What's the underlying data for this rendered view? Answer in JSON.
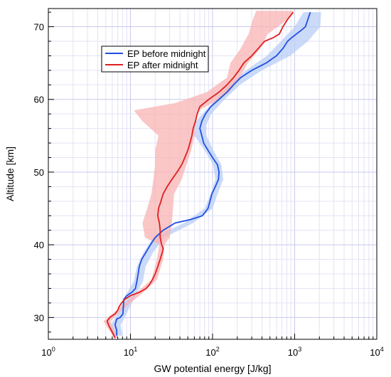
{
  "chart_data": {
    "type": "line",
    "xlabel": "GW potential energy [J/kg]",
    "ylabel": "Altitude [km]",
    "x_scale": "log",
    "xlim": [
      1,
      10000
    ],
    "ylim": [
      27,
      72.5
    ],
    "grid": true,
    "legend_position": "top-left",
    "x_ticks": [
      {
        "base": "10",
        "exp": "0",
        "value": 1
      },
      {
        "base": "10",
        "exp": "1",
        "value": 10
      },
      {
        "base": "10",
        "exp": "2",
        "value": 100
      },
      {
        "base": "10",
        "exp": "3",
        "value": 1000
      },
      {
        "base": "10",
        "exp": "4",
        "value": 10000
      }
    ],
    "y_ticks": [
      "30",
      "40",
      "50",
      "60",
      "70"
    ],
    "series": [
      {
        "name": "EP before midnight",
        "color": "#1f4fe0",
        "band_color": "#b9cdf6",
        "points": [
          [
            6.8,
            27.5
          ],
          [
            6.8,
            28.2
          ],
          [
            6.5,
            29
          ],
          [
            6.8,
            29.8
          ],
          [
            7.5,
            30
          ],
          [
            8.1,
            30.5
          ],
          [
            8.2,
            31.5
          ],
          [
            8.3,
            32.5
          ],
          [
            9,
            33
          ],
          [
            10.5,
            33.5
          ],
          [
            11.5,
            34
          ],
          [
            12,
            35
          ],
          [
            12.4,
            36
          ],
          [
            12.8,
            37
          ],
          [
            13.7,
            38
          ],
          [
            15.5,
            39
          ],
          [
            17.5,
            40
          ],
          [
            20,
            41
          ],
          [
            25,
            42
          ],
          [
            35,
            43
          ],
          [
            55,
            43.5
          ],
          [
            75,
            44
          ],
          [
            88,
            45
          ],
          [
            93,
            46
          ],
          [
            98,
            47
          ],
          [
            108,
            48
          ],
          [
            118,
            49
          ],
          [
            120,
            50
          ],
          [
            115,
            51
          ],
          [
            100,
            52
          ],
          [
            88,
            53
          ],
          [
            78,
            54
          ],
          [
            74,
            55
          ],
          [
            70,
            56
          ],
          [
            74,
            57
          ],
          [
            82,
            58
          ],
          [
            95,
            59
          ],
          [
            120,
            60
          ],
          [
            150,
            61
          ],
          [
            180,
            62
          ],
          [
            220,
            63
          ],
          [
            300,
            64
          ],
          [
            450,
            65
          ],
          [
            600,
            66
          ],
          [
            720,
            67
          ],
          [
            820,
            68
          ],
          [
            920,
            68.5
          ],
          [
            1050,
            69
          ],
          [
            1200,
            69.5
          ],
          [
            1350,
            70
          ],
          [
            1450,
            71
          ],
          [
            1550,
            72
          ]
        ],
        "band": [
          [
            [
              6,
              27.5
            ],
            [
              8,
              27.5
            ]
          ],
          [
            [
              5.8,
              29
            ],
            [
              7.6,
              29
            ]
          ],
          [
            [
              7.4,
              31
            ],
            [
              9.4,
              31
            ]
          ],
          [
            [
              8.7,
              33
            ],
            [
              11.5,
              33
            ]
          ],
          [
            [
              11,
              35
            ],
            [
              14.2,
              35
            ]
          ],
          [
            [
              12,
              37
            ],
            [
              15.3,
              37
            ]
          ],
          [
            [
              14.5,
              39
            ],
            [
              19,
              39
            ]
          ],
          [
            [
              19,
              41
            ],
            [
              26,
              41
            ]
          ],
          [
            [
              45,
              43
            ],
            [
              58,
              43
            ]
          ],
          [
            [
              80,
              45
            ],
            [
              100,
              45
            ]
          ],
          [
            [
              95,
              47
            ],
            [
              115,
              47
            ]
          ],
          [
            [
              108,
              49
            ],
            [
              135,
              49
            ]
          ],
          [
            [
              102,
              51
            ],
            [
              128,
              51
            ]
          ],
          [
            [
              80,
              53
            ],
            [
              102,
              53
            ]
          ],
          [
            [
              60,
              55
            ],
            [
              84,
              55
            ]
          ],
          [
            [
              58,
              56.5
            ],
            [
              84,
              56.5
            ]
          ],
          [
            [
              75,
              58
            ],
            [
              96,
              58
            ]
          ],
          [
            [
              110,
              60
            ],
            [
              140,
              60
            ]
          ],
          [
            [
              160,
              62
            ],
            [
              215,
              62
            ]
          ],
          [
            [
              255,
              64
            ],
            [
              400,
              64
            ]
          ],
          [
            [
              460,
              66
            ],
            [
              880,
              66
            ]
          ],
          [
            [
              680,
              68
            ],
            [
              1450,
              68
            ]
          ],
          [
            [
              1000,
              70
            ],
            [
              2050,
              70
            ]
          ],
          [
            [
              1280,
              72
            ],
            [
              2100,
              72
            ]
          ]
        ]
      },
      {
        "name": "EP after midnight",
        "color": "#e01e1e",
        "band_color": "#f8b3b3",
        "points": [
          [
            6.5,
            27.2
          ],
          [
            6,
            28
          ],
          [
            5.5,
            28.8
          ],
          [
            5.2,
            29.5
          ],
          [
            5.6,
            30
          ],
          [
            6.5,
            30.5
          ],
          [
            7,
            31
          ],
          [
            7.3,
            31.5
          ],
          [
            7.8,
            32
          ],
          [
            8.5,
            32.5
          ],
          [
            10,
            33
          ],
          [
            13,
            33.5
          ],
          [
            15.5,
            34
          ],
          [
            17,
            34.5
          ],
          [
            18.5,
            35.2
          ],
          [
            20,
            36
          ],
          [
            21.5,
            37
          ],
          [
            23,
            38
          ],
          [
            24.5,
            39
          ],
          [
            25,
            39.5
          ],
          [
            24,
            40
          ],
          [
            23,
            41
          ],
          [
            23,
            42
          ],
          [
            22.5,
            43
          ],
          [
            21.5,
            44
          ],
          [
            22,
            45
          ],
          [
            23.5,
            46
          ],
          [
            25,
            47
          ],
          [
            28,
            48
          ],
          [
            32,
            49
          ],
          [
            37,
            50
          ],
          [
            42,
            51
          ],
          [
            46,
            52
          ],
          [
            50,
            53
          ],
          [
            53,
            54
          ],
          [
            56,
            55
          ],
          [
            58,
            56
          ],
          [
            62,
            57
          ],
          [
            65,
            58
          ],
          [
            70,
            59
          ],
          [
            90,
            60
          ],
          [
            120,
            61
          ],
          [
            150,
            62
          ],
          [
            180,
            63
          ],
          [
            210,
            64
          ],
          [
            240,
            65
          ],
          [
            300,
            66
          ],
          [
            360,
            67
          ],
          [
            430,
            68
          ],
          [
            550,
            68.5
          ],
          [
            650,
            69
          ],
          [
            720,
            70
          ],
          [
            820,
            71
          ],
          [
            960,
            72
          ]
        ],
        "band": [
          [
            [
              6.3,
              27.2
            ],
            [
              7,
              27.2
            ]
          ],
          [
            [
              4.7,
              29.5
            ],
            [
              5.7,
              29.5
            ]
          ],
          [
            [
              6.8,
              31
            ],
            [
              7.8,
              31
            ]
          ],
          [
            [
              12,
              33.5
            ],
            [
              14.5,
              33.5
            ]
          ],
          [
            [
              18,
              35.2
            ],
            [
              21,
              35.2
            ]
          ],
          [
            [
              21,
              38
            ],
            [
              25,
              38
            ]
          ],
          [
            [
              22.5,
              40
            ],
            [
              26,
              40
            ]
          ],
          [
            [
              15,
              41
            ],
            [
              30,
              41
            ]
          ],
          [
            [
              14,
              43
            ],
            [
              32,
              43
            ]
          ],
          [
            [
              16,
              45
            ],
            [
              33,
              45
            ]
          ],
          [
            [
              18,
              47
            ],
            [
              34,
              47
            ]
          ],
          [
            [
              19,
              49
            ],
            [
              42,
              49
            ]
          ],
          [
            [
              20,
              51
            ],
            [
              48,
              51
            ]
          ],
          [
            [
              20,
              53
            ],
            [
              55,
              53
            ]
          ],
          [
            [
              22,
              55
            ],
            [
              60,
              55
            ]
          ],
          [
            [
              14,
              57
            ],
            [
              62,
              57
            ]
          ],
          [
            [
              11,
              58.5
            ],
            [
              68,
              58.5
            ]
          ],
          [
            [
              35,
              59.5
            ],
            [
              100,
              59.5
            ]
          ],
          [
            [
              85,
              61
            ],
            [
              160,
              61
            ]
          ],
          [
            [
              150,
              63
            ],
            [
              215,
              63
            ]
          ],
          [
            [
              165,
              65
            ],
            [
              270,
              65
            ]
          ],
          [
            [
              220,
              67
            ],
            [
              380,
              67
            ]
          ],
          [
            [
              275,
              69
            ],
            [
              470,
              69
            ]
          ],
          [
            [
              310,
              71
            ],
            [
              820,
              71
            ]
          ],
          [
            [
              340,
              72.2
            ],
            [
              960,
              72.2
            ]
          ]
        ]
      }
    ]
  }
}
